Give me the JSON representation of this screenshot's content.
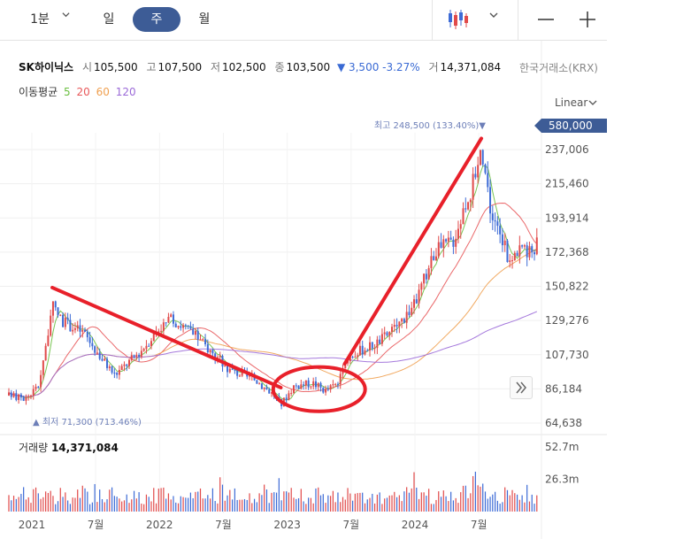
{
  "toolbar": {
    "interval_dropdown": "1분",
    "tabs": [
      "일",
      "주",
      "월"
    ],
    "active_tab": "주"
  },
  "info": {
    "name": "SK하이닉스",
    "open_label": "시",
    "open": "105,500",
    "high_label": "고",
    "high": "107,500",
    "low_label": "저",
    "low": "102,500",
    "close_label": "종",
    "close": "103,500",
    "change": "▼ 3,500 -3.27%",
    "volume_label": "거",
    "volume": "14,371,084",
    "exchange": "한국거래소(KRX)"
  },
  "moving_average": {
    "label": "이동평균",
    "periods": [
      {
        "value": "5",
        "color": "#6abf40"
      },
      {
        "value": "20",
        "color": "#e8585a"
      },
      {
        "value": "60",
        "color": "#f0a050"
      },
      {
        "value": "120",
        "color": "#9b6ad8"
      }
    ]
  },
  "scale_mode": "Linear",
  "volume_panel": {
    "label": "거래량",
    "value": "14,371,084"
  },
  "chart_data": {
    "type": "candlestick",
    "y_ticks": [
      "237,006",
      "215,460",
      "193,914",
      "172,368",
      "150,822",
      "129,276",
      "107,730",
      "86,184",
      "64,638"
    ],
    "y_tick_values": [
      237006,
      215460,
      193914,
      172368,
      150822,
      129276,
      107730,
      86184,
      64638
    ],
    "highlight_label": "580,000",
    "x_ticks": [
      "2021",
      "7월",
      "2022",
      "7월",
      "2023",
      "7월",
      "2024",
      "7월"
    ],
    "x_tick_years": [
      2021.0,
      2021.5,
      2022.0,
      2022.5,
      2023.0,
      2023.5,
      2024.0,
      2024.5
    ],
    "x_range": [
      2020.82,
      2024.97
    ],
    "max_marker": "최고 248,500 (133.40%)",
    "max_value": 248500,
    "min_marker": "최저 71,300 (713.46%)",
    "min_value": 71300,
    "volume_ticks": [
      "52.7m",
      "26.3m"
    ],
    "volume_tick_values": [
      52700000,
      26300000
    ],
    "colors": {
      "up": "#e14a4a",
      "down": "#3d6bd6",
      "annotation": "#e8202a"
    },
    "keypoints": [
      [
        2020.82,
        82000
      ],
      [
        2020.95,
        80000
      ],
      [
        2021.05,
        88000
      ],
      [
        2021.12,
        118000
      ],
      [
        2021.16,
        138000
      ],
      [
        2021.25,
        128000
      ],
      [
        2021.4,
        122000
      ],
      [
        2021.55,
        105000
      ],
      [
        2021.65,
        95000
      ],
      [
        2021.85,
        110000
      ],
      [
        2022.0,
        125000
      ],
      [
        2022.1,
        130000
      ],
      [
        2022.25,
        122000
      ],
      [
        2022.4,
        110000
      ],
      [
        2022.55,
        98000
      ],
      [
        2022.75,
        92000
      ],
      [
        2022.9,
        82000
      ],
      [
        2022.95,
        76000
      ],
      [
        2023.05,
        88000
      ],
      [
        2023.2,
        90000
      ],
      [
        2023.3,
        85000
      ],
      [
        2023.4,
        90000
      ],
      [
        2023.5,
        108000
      ],
      [
        2023.7,
        115000
      ],
      [
        2023.85,
        125000
      ],
      [
        2024.0,
        140000
      ],
      [
        2024.15,
        172000
      ],
      [
        2024.3,
        180000
      ],
      [
        2024.45,
        215000
      ],
      [
        2024.52,
        240000
      ],
      [
        2024.6,
        195000
      ],
      [
        2024.68,
        180000
      ],
      [
        2024.75,
        165000
      ],
      [
        2024.82,
        178000
      ],
      [
        2024.88,
        170000
      ],
      [
        2024.93,
        175000
      ],
      [
        2024.97,
        180000
      ]
    ],
    "annotation_lines": [
      {
        "from": [
          2021.16,
          150000
        ],
        "to": [
          2022.95,
          87000
        ]
      },
      {
        "from": [
          2023.45,
          102000
        ],
        "to": [
          2024.52,
          244000
        ]
      }
    ],
    "annotation_ellipse": {
      "center": [
        2023.25,
        86000
      ],
      "rx_years": 0.36,
      "ry_value": 14000
    }
  }
}
